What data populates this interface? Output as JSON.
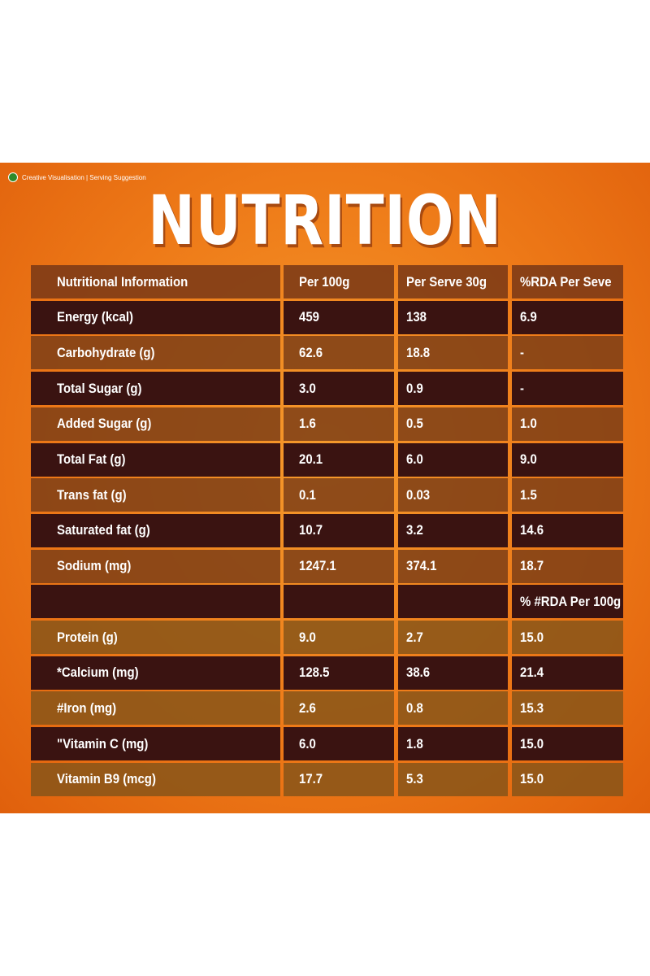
{
  "badge": "Creative Visualisation | Serving Suggestion",
  "title": "NUTRITION",
  "table": {
    "header": [
      "Nutritional Information",
      "Per 100g",
      "Per Serve 30g",
      "%RDA Per Seve"
    ],
    "rows": [
      [
        "Energy (kcal)",
        "459",
        "138",
        "6.9"
      ],
      [
        "Carbohydrate (g)",
        "62.6",
        "18.8",
        "-"
      ],
      [
        "Total Sugar (g)",
        "3.0",
        "0.9",
        "-"
      ],
      [
        "Added Sugar (g)",
        "1.6",
        "0.5",
        "1.0"
      ],
      [
        "Total Fat (g)",
        "20.1",
        "6.0",
        "9.0"
      ],
      [
        "Trans fat (g)",
        "0.1",
        "0.03",
        "1.5"
      ],
      [
        "Saturated fat (g)",
        "10.7",
        "3.2",
        "14.6"
      ],
      [
        "Sodium (mg)",
        "1247.1",
        "374.1",
        "18.7"
      ],
      [
        null,
        null,
        null,
        "% #RDA Per 100g"
      ],
      [
        "Protein (g)",
        "9.0",
        "2.7",
        "15.0"
      ],
      [
        "*Calcium (mg)",
        "128.5",
        "38.6",
        "21.4"
      ],
      [
        "#Iron (mg)",
        "2.6",
        "0.8",
        "15.3"
      ],
      [
        "\"Vitamin C (mg)",
        "6.0",
        "1.8",
        "15.0"
      ],
      [
        "Vitamin B9 (mcg)",
        "17.7",
        "5.3",
        "15.0"
      ]
    ]
  }
}
